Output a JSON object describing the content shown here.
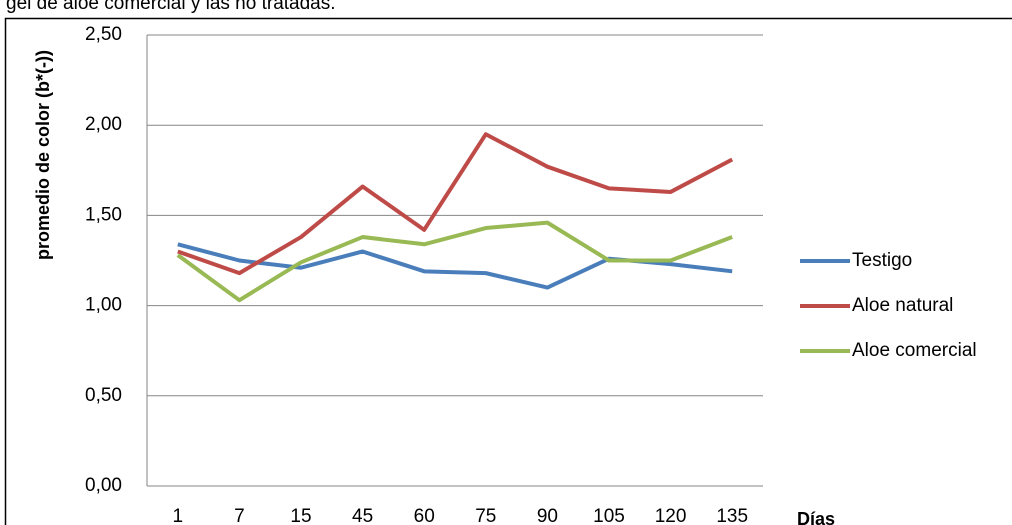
{
  "caption": "gel de aloe comercial y las no tratadas.",
  "chart_data": {
    "type": "line",
    "y_label": "promedio de color (b*(-))",
    "x_label": "Días",
    "categories": [
      "1",
      "7",
      "15",
      "45",
      "60",
      "75",
      "90",
      "105",
      "120",
      "135"
    ],
    "series": [
      {
        "name": "Testigo",
        "color": "#4a7ebb",
        "values": [
          1.34,
          1.25,
          1.21,
          1.3,
          1.19,
          1.18,
          1.1,
          1.26,
          1.23,
          1.19
        ]
      },
      {
        "name": "Aloe natural",
        "color": "#be4b48",
        "values": [
          1.3,
          1.18,
          1.38,
          1.66,
          1.42,
          1.95,
          1.77,
          1.65,
          1.63,
          1.81
        ]
      },
      {
        "name": "Aloe comercial",
        "color": "#98b954",
        "values": [
          1.28,
          1.03,
          1.24,
          1.38,
          1.34,
          1.43,
          1.46,
          1.25,
          1.25,
          1.38
        ]
      }
    ],
    "ylim": [
      0,
      2.5
    ],
    "yticks": [
      {
        "value": 0,
        "label": "0,00"
      },
      {
        "value": 0.5,
        "label": "0,50"
      },
      {
        "value": 1,
        "label": "1,00"
      },
      {
        "value": 1.5,
        "label": "1,50"
      },
      {
        "value": 2,
        "label": "2,00"
      },
      {
        "value": 2.5,
        "label": "2,50"
      }
    ],
    "grid": true,
    "legend": "right"
  }
}
